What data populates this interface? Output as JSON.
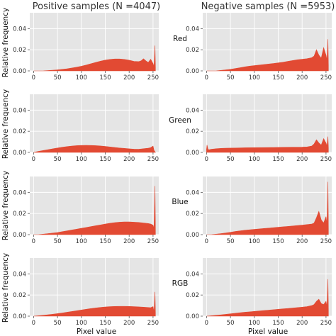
{
  "figure": {
    "col_titles": [
      "Positive samples (N =4047)",
      "Negative samples (N =5953)"
    ],
    "row_labels": [
      "Red",
      "Green",
      "Blue",
      "RGB"
    ],
    "ylabel": "Relative frequency",
    "xlabel": "Pixel value",
    "fill_color": "#e24a33",
    "panel_bg_color": "#e5e5e5"
  },
  "chart_data": [
    {
      "type": "area",
      "panel": "Positive samples — Red",
      "x": [
        0,
        10,
        20,
        30,
        40,
        50,
        60,
        70,
        80,
        90,
        100,
        110,
        120,
        130,
        140,
        150,
        160,
        170,
        180,
        190,
        200,
        210,
        220,
        225,
        230,
        235,
        240,
        245,
        250,
        252,
        254,
        255
      ],
      "y": [
        0,
        0,
        0,
        0.0003,
        0.0006,
        0.001,
        0.0015,
        0.002,
        0.0027,
        0.0035,
        0.0044,
        0.0055,
        0.0068,
        0.008,
        0.0092,
        0.0102,
        0.0109,
        0.0113,
        0.0113,
        0.0109,
        0.0101,
        0.009,
        0.0088,
        0.0095,
        0.0115,
        0.0095,
        0.008,
        0.011,
        0.007,
        0.004,
        0.024,
        0.003
      ],
      "xticks": [
        0,
        50,
        100,
        150,
        200,
        250
      ],
      "yticks": [
        0.0,
        0.02,
        0.04
      ],
      "xlim": [
        -8,
        262
      ],
      "ylim": [
        0,
        0.055
      ]
    },
    {
      "type": "area",
      "panel": "Negative samples — Red",
      "x": [
        0,
        10,
        20,
        30,
        40,
        50,
        60,
        70,
        80,
        90,
        100,
        110,
        120,
        130,
        140,
        150,
        160,
        170,
        180,
        190,
        200,
        210,
        220,
        225,
        230,
        235,
        240,
        245,
        250,
        252,
        254,
        255
      ],
      "y": [
        0,
        0,
        0,
        0.0005,
        0.001,
        0.0015,
        0.0022,
        0.003,
        0.0038,
        0.0045,
        0.005,
        0.0055,
        0.006,
        0.0065,
        0.007,
        0.0076,
        0.0082,
        0.009,
        0.0098,
        0.0105,
        0.011,
        0.0115,
        0.0125,
        0.014,
        0.02,
        0.015,
        0.012,
        0.022,
        0.015,
        0.01,
        0.03,
        0.005
      ],
      "xticks": [
        0,
        50,
        100,
        150,
        200,
        250
      ],
      "yticks": [
        0.0,
        0.02,
        0.04
      ],
      "xlim": [
        -8,
        262
      ],
      "ylim": [
        0,
        0.055
      ]
    },
    {
      "type": "area",
      "panel": "Positive samples — Green",
      "x": [
        0,
        5,
        10,
        20,
        30,
        40,
        50,
        60,
        70,
        80,
        90,
        100,
        110,
        120,
        130,
        140,
        150,
        160,
        170,
        180,
        190,
        200,
        210,
        220,
        230,
        240,
        245,
        250,
        252,
        255
      ],
      "y": [
        0,
        0.0005,
        0.001,
        0.0018,
        0.0026,
        0.0034,
        0.0042,
        0.0049,
        0.0055,
        0.006,
        0.0064,
        0.0066,
        0.0067,
        0.0066,
        0.0064,
        0.0061,
        0.0057,
        0.0052,
        0.0047,
        0.0042,
        0.0038,
        0.0034,
        0.0031,
        0.003,
        0.0035,
        0.004,
        0.0045,
        0.006,
        0.002,
        0
      ],
      "xticks": [
        0,
        50,
        100,
        150,
        200,
        250
      ],
      "yticks": [
        0.0,
        0.02,
        0.04
      ],
      "xlim": [
        -8,
        262
      ],
      "ylim": [
        0,
        0.055
      ]
    },
    {
      "type": "area",
      "panel": "Negative samples — Green",
      "x": [
        0,
        1,
        3,
        5,
        10,
        20,
        30,
        40,
        60,
        80,
        100,
        120,
        140,
        160,
        180,
        200,
        210,
        220,
        225,
        230,
        235,
        240,
        245,
        250,
        252,
        254,
        255
      ],
      "y": [
        0.003,
        0.007,
        0.003,
        0.0025,
        0.003,
        0.0035,
        0.0038,
        0.004,
        0.0042,
        0.0044,
        0.0045,
        0.0046,
        0.0047,
        0.0048,
        0.0049,
        0.005,
        0.0052,
        0.006,
        0.008,
        0.012,
        0.009,
        0.007,
        0.013,
        0.009,
        0.006,
        0.015,
        0.004
      ],
      "xticks": [
        0,
        50,
        100,
        150,
        200,
        250
      ],
      "yticks": [
        0.0,
        0.02,
        0.04
      ],
      "xlim": [
        -8,
        262
      ],
      "ylim": [
        0,
        0.055
      ]
    },
    {
      "type": "area",
      "panel": "Positive samples — Blue",
      "x": [
        0,
        10,
        20,
        30,
        40,
        50,
        60,
        70,
        80,
        90,
        100,
        110,
        120,
        130,
        140,
        150,
        160,
        170,
        180,
        190,
        200,
        210,
        220,
        230,
        240,
        245,
        250,
        252,
        254,
        255
      ],
      "y": [
        0,
        0,
        0.0005,
        0.001,
        0.0015,
        0.002,
        0.0028,
        0.0036,
        0.0044,
        0.0052,
        0.006,
        0.0068,
        0.0076,
        0.0084,
        0.0092,
        0.01,
        0.0108,
        0.0114,
        0.0118,
        0.012,
        0.012,
        0.0118,
        0.0115,
        0.011,
        0.0105,
        0.01,
        0.009,
        0.006,
        0.046,
        0.003
      ],
      "xticks": [
        0,
        50,
        100,
        150,
        200,
        250
      ],
      "yticks": [
        0.0,
        0.02,
        0.04
      ],
      "xlim": [
        -8,
        262
      ],
      "ylim": [
        0,
        0.055
      ]
    },
    {
      "type": "area",
      "panel": "Negative samples — Blue",
      "x": [
        0,
        10,
        20,
        30,
        40,
        50,
        60,
        70,
        80,
        90,
        100,
        110,
        120,
        130,
        140,
        150,
        160,
        170,
        180,
        190,
        200,
        210,
        220,
        225,
        230,
        235,
        240,
        245,
        250,
        252,
        254,
        255
      ],
      "y": [
        0,
        0,
        0.0005,
        0.001,
        0.0016,
        0.0022,
        0.003,
        0.0036,
        0.0042,
        0.0046,
        0.005,
        0.0054,
        0.0058,
        0.0062,
        0.0066,
        0.007,
        0.0074,
        0.0078,
        0.0082,
        0.0086,
        0.009,
        0.0095,
        0.01,
        0.011,
        0.016,
        0.022,
        0.014,
        0.011,
        0.017,
        0.01,
        0.05,
        0.005
      ],
      "xticks": [
        0,
        50,
        100,
        150,
        200,
        250
      ],
      "yticks": [
        0.0,
        0.02,
        0.04
      ],
      "xlim": [
        -8,
        262
      ],
      "ylim": [
        0,
        0.055
      ]
    },
    {
      "type": "area",
      "panel": "Positive samples — RGB",
      "x": [
        0,
        10,
        20,
        30,
        40,
        50,
        60,
        70,
        80,
        90,
        100,
        110,
        120,
        130,
        140,
        150,
        160,
        170,
        180,
        190,
        200,
        210,
        220,
        230,
        240,
        245,
        250,
        252,
        254,
        255
      ],
      "y": [
        0,
        0.0004,
        0.0008,
        0.0013,
        0.0018,
        0.0024,
        0.003,
        0.0037,
        0.0044,
        0.0051,
        0.0058,
        0.0065,
        0.0072,
        0.0078,
        0.0083,
        0.0087,
        0.009,
        0.0092,
        0.0093,
        0.0093,
        0.0092,
        0.009,
        0.0088,
        0.0085,
        0.0082,
        0.008,
        0.009,
        0.004,
        0.023,
        0.003
      ],
      "xticks": [
        0,
        50,
        100,
        150,
        200,
        250
      ],
      "yticks": [
        0.0,
        0.02,
        0.04
      ],
      "xlim": [
        -8,
        262
      ],
      "ylim": [
        0,
        0.055
      ]
    },
    {
      "type": "area",
      "panel": "Negative samples — RGB",
      "x": [
        0,
        10,
        20,
        30,
        40,
        50,
        60,
        70,
        80,
        90,
        100,
        110,
        120,
        130,
        140,
        150,
        160,
        170,
        180,
        190,
        200,
        210,
        220,
        225,
        230,
        235,
        240,
        245,
        250,
        252,
        254,
        255
      ],
      "y": [
        0,
        0.0004,
        0.0008,
        0.0012,
        0.0017,
        0.0022,
        0.0027,
        0.0032,
        0.0037,
        0.0041,
        0.0045,
        0.0049,
        0.0053,
        0.0057,
        0.0061,
        0.0065,
        0.0069,
        0.0073,
        0.0077,
        0.0081,
        0.0085,
        0.009,
        0.01,
        0.011,
        0.014,
        0.016,
        0.012,
        0.011,
        0.014,
        0.009,
        0.035,
        0.005
      ],
      "xticks": [
        0,
        50,
        100,
        150,
        200,
        250
      ],
      "yticks": [
        0.0,
        0.02,
        0.04
      ],
      "xlim": [
        -8,
        262
      ],
      "ylim": [
        0,
        0.055
      ]
    }
  ]
}
